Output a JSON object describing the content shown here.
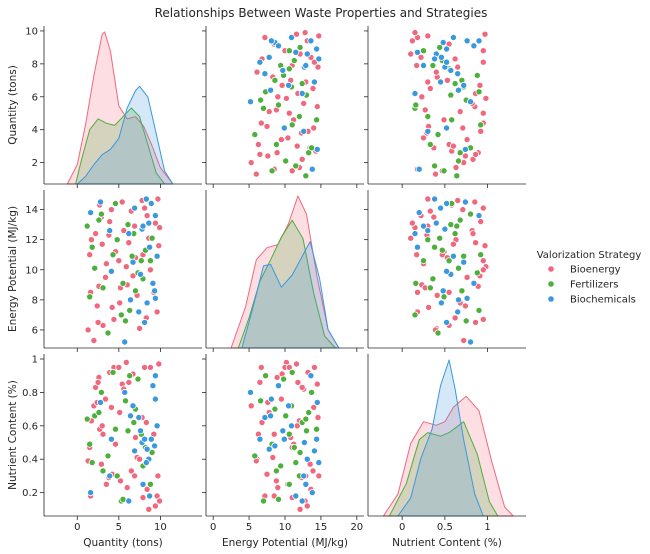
{
  "chart_data": {
    "type": "scatter",
    "kind": "pairplot",
    "title": "Relationships Between Waste Properties and Strategies",
    "variables": [
      {
        "key": "qty",
        "label": "Quantity (tons)",
        "range": [
          -4,
          15
        ],
        "ticks": [
          0,
          5,
          10
        ],
        "y_ticks": [
          2,
          4,
          6,
          8,
          10
        ]
      },
      {
        "key": "energy",
        "label": "Energy Potential (MJ/kg)",
        "range": [
          -1,
          21
        ],
        "ticks": [
          0,
          5,
          10,
          15,
          20
        ],
        "y_ticks": [
          6,
          8,
          10,
          12,
          14
        ]
      },
      {
        "key": "nutrient",
        "label": "Nutrient Content (%)",
        "range": [
          -0.4,
          1.45
        ],
        "ticks": [
          0.0,
          0.5,
          1.0
        ],
        "y_ticks": [
          0.2,
          0.4,
          0.6,
          0.8,
          1.0
        ]
      }
    ],
    "y_ranges": {
      "qty": [
        0.7,
        10.3
      ],
      "energy": [
        4.8,
        15.3
      ],
      "nutrient": [
        0.06,
        1.03
      ]
    },
    "legend": {
      "title": "Valorization Strategy",
      "placement": "right"
    },
    "series": [
      {
        "name": "Bioenergy",
        "color": "#f0687e",
        "points": [
          [
            9.7,
            14.7,
            0.3
          ],
          [
            9.6,
            7.2,
            0.18
          ],
          [
            2.0,
            5.3,
            0.72
          ],
          [
            5.4,
            14.5,
            0.85
          ],
          [
            9.8,
            11.6,
            0.97
          ],
          [
            3.1,
            6.3,
            0.55
          ],
          [
            6.5,
            13.9,
            0.33
          ],
          [
            4.6,
            11.2,
            0.49
          ],
          [
            2.6,
            8.9,
            0.89
          ],
          [
            3.8,
            12.3,
            0.29
          ],
          [
            8.1,
            14.1,
            0.95
          ],
          [
            1.7,
            12.0,
            0.63
          ],
          [
            2.9,
            13.5,
            0.37
          ],
          [
            5.9,
            10.2,
            0.98
          ],
          [
            7.2,
            8.3,
            0.41
          ],
          [
            3.4,
            9.5,
            0.76
          ],
          [
            7.9,
            11.0,
            0.17
          ],
          [
            8.3,
            6.8,
            0.62
          ],
          [
            5.1,
            7.8,
            0.68
          ],
          [
            9.9,
            12.8,
            0.15
          ],
          [
            8.8,
            10.0,
            0.95
          ],
          [
            1.5,
            11.0,
            0.47
          ],
          [
            2.7,
            14.3,
            0.58
          ],
          [
            4.2,
            7.5,
            0.31
          ],
          [
            5.6,
            12.6,
            0.82
          ],
          [
            7.5,
            6.1,
            0.4
          ],
          [
            6.0,
            9.0,
            0.23
          ],
          [
            3.9,
            13.2,
            0.92
          ],
          [
            2.4,
            7.6,
            0.74
          ],
          [
            8.6,
            12.1,
            0.1
          ],
          [
            4.4,
            6.7,
            0.95
          ],
          [
            9.2,
            8.5,
            0.55
          ],
          [
            6.2,
            11.8,
            0.86
          ],
          [
            3.5,
            10.4,
            0.25
          ],
          [
            7.8,
            14.6,
            0.65
          ],
          [
            1.3,
            6.0,
            0.39
          ],
          [
            5.2,
            8.8,
            0.27
          ],
          [
            9.4,
            13.1,
            0.12
          ],
          [
            2.2,
            12.4,
            0.83
          ],
          [
            6.7,
            9.6,
            0.91
          ],
          [
            4.1,
            14.0,
            0.71
          ],
          [
            7.0,
            10.8,
            0.53
          ],
          [
            1.6,
            8.5,
            0.18
          ],
          [
            3.0,
            11.7,
            0.6
          ],
          [
            8.4,
            13.6,
            0.22
          ],
          [
            2.5,
            6.5,
            0.86
          ],
          [
            6.9,
            12.9,
            0.3
          ],
          [
            5.0,
            10.6,
            0.95
          ]
        ]
      },
      {
        "name": "Fertilizers",
        "color": "#4daf3c",
        "points": [
          [
            7.3,
            9.8,
            0.88
          ],
          [
            6.1,
            13.0,
            0.57
          ],
          [
            2.1,
            10.1,
            0.66
          ],
          [
            7.9,
            9.4,
            0.36
          ],
          [
            4.3,
            11.0,
            0.92
          ],
          [
            2.6,
            13.3,
            0.68
          ],
          [
            5.3,
            7.0,
            0.15
          ],
          [
            6.8,
            12.4,
            0.62
          ],
          [
            3.7,
            5.8,
            0.42
          ],
          [
            8.8,
            10.6,
            0.25
          ],
          [
            1.5,
            8.2,
            0.49
          ],
          [
            6.6,
            10.9,
            0.72
          ],
          [
            4.6,
            14.4,
            0.58
          ],
          [
            3.1,
            8.8,
            0.33
          ],
          [
            5.8,
            6.6,
            0.75
          ],
          [
            9.0,
            12.1,
            0.44
          ],
          [
            1.8,
            11.5,
            0.38
          ],
          [
            2.9,
            13.7,
            0.8
          ],
          [
            5.5,
            9.1,
            0.16
          ],
          [
            7.7,
            10.6,
            0.55
          ],
          [
            1.2,
            12.9,
            0.64
          ],
          [
            6.3,
            7.3,
            0.9
          ],
          [
            8.2,
            11.3,
            0.47
          ],
          [
            4.8,
            12.0,
            0.3
          ],
          [
            7.0,
            8.6,
            0.7
          ]
        ]
      },
      {
        "name": "Biochemicals",
        "color": "#3a98de",
        "points": [
          [
            8.6,
            13.1,
            0.4
          ],
          [
            7.4,
            7.2,
            0.65
          ],
          [
            9.3,
            8.6,
            0.48
          ],
          [
            9.4,
            13.6,
            0.9
          ],
          [
            6.9,
            14.1,
            0.45
          ],
          [
            7.8,
            12.7,
            0.5
          ],
          [
            8.7,
            11.5,
            0.18
          ],
          [
            9.1,
            9.1,
            0.84
          ],
          [
            7.9,
            12.9,
            0.25
          ],
          [
            8.1,
            6.5,
            0.52
          ],
          [
            6.4,
            8.0,
            0.66
          ],
          [
            2.8,
            14.5,
            0.74
          ],
          [
            7.6,
            9.7,
            0.57
          ],
          [
            3.9,
            12.6,
            0.3
          ],
          [
            8.9,
            14.4,
            0.52
          ],
          [
            6.7,
            10.5,
            0.72
          ],
          [
            8.4,
            7.8,
            0.46
          ],
          [
            6.2,
            12.4,
            0.15
          ],
          [
            5.7,
            5.2,
            0.8
          ],
          [
            9.6,
            10.9,
            0.6
          ],
          [
            4.1,
            9.9,
            0.52
          ],
          [
            8.3,
            14.7,
            0.38
          ],
          [
            1.6,
            13.8,
            0.2
          ],
          [
            9.4,
            8.1,
            0.76
          ]
        ]
      }
    ],
    "kde": {
      "qty": {
        "Bioenergy": [
          [
            -1.2,
            0.0
          ],
          [
            0.0,
            0.18
          ],
          [
            1.0,
            0.55
          ],
          [
            2.0,
            1.0
          ],
          [
            3.0,
            1.38
          ],
          [
            3.3,
            1.4
          ],
          [
            4.0,
            1.22
          ],
          [
            5.0,
            0.72
          ],
          [
            6.0,
            0.6
          ],
          [
            7.0,
            0.62
          ],
          [
            8.0,
            0.53
          ],
          [
            9.0,
            0.35
          ],
          [
            10.0,
            0.15
          ],
          [
            11.5,
            0.0
          ]
        ],
        "Fertilizers": [
          [
            -0.2,
            0.0
          ],
          [
            0.5,
            0.22
          ],
          [
            1.5,
            0.5
          ],
          [
            2.5,
            0.6
          ],
          [
            3.5,
            0.56
          ],
          [
            4.5,
            0.54
          ],
          [
            5.5,
            0.62
          ],
          [
            6.5,
            0.7
          ],
          [
            7.5,
            0.62
          ],
          [
            8.5,
            0.36
          ],
          [
            9.5,
            0.1
          ],
          [
            10.5,
            0.0
          ]
        ],
        "Biochemicals": [
          [
            0.0,
            0.0
          ],
          [
            1.0,
            0.07
          ],
          [
            2.0,
            0.18
          ],
          [
            3.0,
            0.27
          ],
          [
            4.0,
            0.32
          ],
          [
            5.0,
            0.42
          ],
          [
            6.0,
            0.7
          ],
          [
            7.0,
            0.86
          ],
          [
            7.5,
            0.9
          ],
          [
            8.5,
            0.8
          ],
          [
            9.5,
            0.46
          ],
          [
            10.5,
            0.12
          ],
          [
            11.5,
            0.0
          ]
        ]
      },
      "energy": {
        "Bioenergy": [
          [
            2.5,
            0.0
          ],
          [
            4.5,
            0.27
          ],
          [
            6.0,
            0.58
          ],
          [
            7.5,
            0.66
          ],
          [
            9.0,
            0.68
          ],
          [
            10.5,
            0.82
          ],
          [
            11.8,
            1.0
          ],
          [
            13.0,
            0.88
          ],
          [
            14.5,
            0.46
          ],
          [
            16.0,
            0.12
          ],
          [
            17.5,
            0.0
          ]
        ],
        "Fertilizers": [
          [
            3.5,
            0.0
          ],
          [
            5.0,
            0.2
          ],
          [
            6.5,
            0.44
          ],
          [
            8.0,
            0.58
          ],
          [
            9.5,
            0.73
          ],
          [
            11.0,
            0.84
          ],
          [
            12.5,
            0.72
          ],
          [
            14.0,
            0.36
          ],
          [
            15.5,
            0.08
          ],
          [
            17.0,
            0.0
          ]
        ],
        "Biochemicals": [
          [
            4.0,
            0.0
          ],
          [
            5.5,
            0.26
          ],
          [
            7.0,
            0.54
          ],
          [
            8.0,
            0.55
          ],
          [
            9.5,
            0.4
          ],
          [
            11.0,
            0.48
          ],
          [
            13.5,
            0.7
          ],
          [
            14.8,
            0.46
          ],
          [
            16.0,
            0.12
          ],
          [
            17.5,
            0.0
          ]
        ]
      },
      "nutrient": {
        "Bioenergy": [
          [
            -0.22,
            0.0
          ],
          [
            -0.05,
            0.12
          ],
          [
            0.1,
            0.4
          ],
          [
            0.25,
            0.52
          ],
          [
            0.4,
            0.5
          ],
          [
            0.5,
            0.52
          ],
          [
            0.6,
            0.6
          ],
          [
            0.75,
            0.66
          ],
          [
            0.9,
            0.58
          ],
          [
            1.05,
            0.3
          ],
          [
            1.2,
            0.05
          ],
          [
            1.3,
            0.0
          ]
        ],
        "Fertilizers": [
          [
            -0.15,
            0.0
          ],
          [
            0.05,
            0.18
          ],
          [
            0.2,
            0.42
          ],
          [
            0.3,
            0.46
          ],
          [
            0.45,
            0.44
          ],
          [
            0.55,
            0.46
          ],
          [
            0.72,
            0.52
          ],
          [
            0.88,
            0.34
          ],
          [
            1.02,
            0.08
          ],
          [
            1.12,
            0.0
          ]
        ],
        "Biochemicals": [
          [
            -0.05,
            0.0
          ],
          [
            0.1,
            0.1
          ],
          [
            0.22,
            0.32
          ],
          [
            0.35,
            0.48
          ],
          [
            0.45,
            0.72
          ],
          [
            0.55,
            0.86
          ],
          [
            0.62,
            0.7
          ],
          [
            0.72,
            0.42
          ],
          [
            0.85,
            0.12
          ],
          [
            0.95,
            0.0
          ]
        ]
      }
    }
  }
}
